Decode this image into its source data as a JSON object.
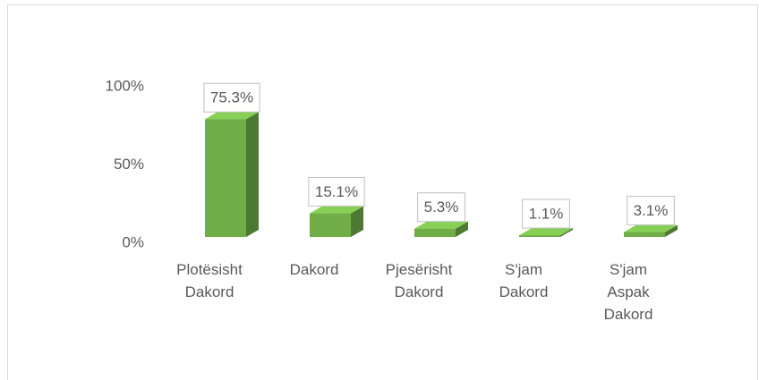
{
  "chart_data": {
    "type": "bar3d",
    "categories": [
      "Plotësisht Dakord",
      "Dakord",
      "Pjesërisht Dakord",
      "S'jam Dakord",
      "S'jam Aspak Dakord"
    ],
    "values": [
      75.3,
      15.1,
      5.3,
      1.1,
      3.1
    ],
    "value_labels": [
      "75.3%",
      "15.1%",
      "5.3%",
      "1.1%",
      "3.1%"
    ],
    "color": "#70ad47",
    "ylim": [
      0,
      100
    ],
    "yticks": [
      {
        "value": 0,
        "label": "0%"
      },
      {
        "value": 50,
        "label": "50%"
      },
      {
        "value": 100,
        "label": "100%"
      }
    ]
  }
}
